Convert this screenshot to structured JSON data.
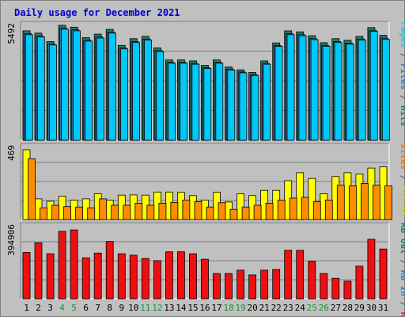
{
  "chart_data": [
    {
      "type": "bar",
      "title": "Daily usage for December 2021",
      "categories": [
        "1",
        "2",
        "3",
        "4",
        "5",
        "6",
        "7",
        "8",
        "9",
        "10",
        "11",
        "12",
        "13",
        "14",
        "15",
        "16",
        "17",
        "18",
        "19",
        "20",
        "21",
        "22",
        "23",
        "24",
        "25",
        "26",
        "27",
        "28",
        "29",
        "30",
        "31"
      ],
      "weekend_days": [
        "4",
        "5",
        "11",
        "12",
        "18",
        "19",
        "25",
        "26"
      ],
      "ylim": [
        0,
        5492
      ],
      "y_tick_label": "5492",
      "grid": true,
      "legend": [
        {
          "label": "Hits",
          "color": "#1f7f62"
        },
        {
          "label": "/",
          "color": "#555555"
        },
        {
          "label": "Files",
          "color": "#3a82c8"
        },
        {
          "label": "/",
          "color": "#555555"
        },
        {
          "label": "Pages",
          "color": "#2ec8d8"
        }
      ],
      "series": [
        {
          "name": "Hits",
          "color": "#1f7f62",
          "values": [
            5340,
            5230,
            4820,
            5610,
            5520,
            5010,
            5180,
            5410,
            4630,
            4960,
            5070,
            4510,
            3920,
            3920,
            3870,
            3650,
            3920,
            3580,
            3440,
            3310,
            3870,
            4750,
            5340,
            5290,
            5100,
            4760,
            4960,
            4880,
            5070,
            5500,
            5120
          ]
        },
        {
          "name": "Files",
          "color": "#3a82c8",
          "values": [
            5200,
            5090,
            4690,
            5470,
            5390,
            4880,
            5040,
            5280,
            4500,
            4820,
            4940,
            4380,
            3800,
            3800,
            3750,
            3540,
            3800,
            3470,
            3330,
            3200,
            3750,
            4620,
            5200,
            5150,
            4960,
            4630,
            4820,
            4740,
            4940,
            5370,
            4980
          ]
        },
        {
          "name": "Pages",
          "color": "#00c8f8",
          "values": [
            5150,
            5040,
            4650,
            5420,
            5340,
            4840,
            4990,
            5230,
            4460,
            4770,
            4890,
            4330,
            3760,
            3760,
            3710,
            3500,
            3760,
            3430,
            3290,
            3160,
            3710,
            4580,
            5150,
            5100,
            4910,
            4590,
            4770,
            4690,
            4890,
            5320,
            4930
          ]
        }
      ]
    },
    {
      "type": "bar",
      "categories": [
        "1",
        "2",
        "3",
        "4",
        "5",
        "6",
        "7",
        "8",
        "9",
        "10",
        "11",
        "12",
        "13",
        "14",
        "15",
        "16",
        "17",
        "18",
        "19",
        "20",
        "21",
        "22",
        "23",
        "24",
        "25",
        "26",
        "27",
        "28",
        "29",
        "30",
        "31"
      ],
      "ylim": [
        0,
        469
      ],
      "y_tick_label": "469",
      "grid": true,
      "legend": [
        {
          "label": "Visits",
          "color": "#e0d000"
        },
        {
          "label": "/",
          "color": "#555555"
        },
        {
          "label": "Sites",
          "color": "#f07800"
        }
      ],
      "series": [
        {
          "name": "Visits",
          "color": "#ffff00",
          "values": [
            469,
            139,
            123,
            157,
            130,
            139,
            174,
            130,
            164,
            166,
            164,
            185,
            185,
            183,
            161,
            130,
            183,
            118,
            174,
            161,
            196,
            196,
            261,
            315,
            276,
            174,
            289,
            315,
            305,
            346,
            354
          ]
        },
        {
          "name": "Sites",
          "color": "#ff8c00",
          "values": [
            409,
            79,
            96,
            87,
            84,
            79,
            139,
            96,
            96,
            110,
            96,
            110,
            115,
            131,
            120,
            84,
            113,
            68,
            84,
            96,
            110,
            131,
            144,
            149,
            120,
            131,
            231,
            226,
            242,
            231,
            226
          ]
        }
      ]
    },
    {
      "type": "bar",
      "categories": [
        "1",
        "2",
        "3",
        "4",
        "5",
        "6",
        "7",
        "8",
        "9",
        "10",
        "11",
        "12",
        "13",
        "14",
        "15",
        "16",
        "17",
        "18",
        "19",
        "20",
        "21",
        "22",
        "23",
        "24",
        "25",
        "26",
        "27",
        "28",
        "29",
        "30",
        "31"
      ],
      "ylim": [
        0,
        394906
      ],
      "y_tick_label": "394906",
      "grid": true,
      "legend": [
        {
          "label": "KB F",
          "color": "#e03030"
        },
        {
          "label": "/",
          "color": "#555555"
        },
        {
          "label": "KB In",
          "color": "#3a82c8"
        },
        {
          "label": "/",
          "color": "#555555"
        },
        {
          "label": "KB Out",
          "color": "#1f7f62"
        }
      ],
      "series": [
        {
          "name": "KB F",
          "color": "#ee1010",
          "values": [
            263000,
            317000,
            255000,
            382000,
            390000,
            232000,
            259000,
            325000,
            255000,
            247000,
            228000,
            216000,
            266000,
            266000,
            255000,
            224000,
            143000,
            143000,
            162000,
            135000,
            162000,
            166000,
            274000,
            274000,
            212000,
            143000,
            116000,
            100000,
            185000,
            337000,
            282000
          ]
        }
      ]
    }
  ]
}
